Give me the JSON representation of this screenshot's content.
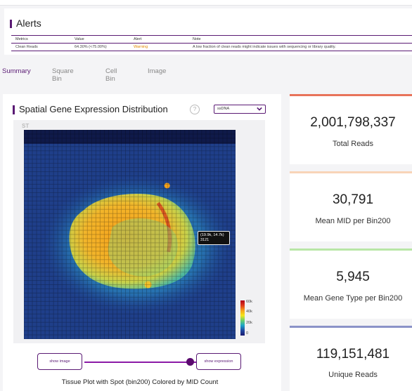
{
  "alerts": {
    "title": "Alerts",
    "columns": [
      "Metrics",
      "Value",
      "Alert",
      "Note"
    ],
    "rows": [
      {
        "metric": "Clean Reads",
        "value": "64.30% (<75.00%)",
        "alert": "Warning",
        "note": "A low fraction of clean reads might indicate issues with sequencing or library quality."
      }
    ]
  },
  "tabs": [
    "Summary",
    "Square Bin",
    "Cell Bin",
    "Image"
  ],
  "active_tab": "Summary",
  "viz": {
    "title": "Spatial Gene Expression Distribution",
    "info_icon": "?",
    "select_value": "ssDNA",
    "plot_label": "ST",
    "tooltip_coords": "(19.9k, 14.7k)",
    "tooltip_value": "3121",
    "colorbar_ticks": [
      "60k",
      "40k",
      "20k",
      "0"
    ],
    "show_image_label": "show image",
    "show_expression_label": "show expression",
    "caption": "Tissue Plot with Spot (bin200) Colored by MID Count"
  },
  "kpis": [
    {
      "value": "2,001,798,337",
      "label": "Total Reads",
      "color": "#e8735a"
    },
    {
      "value": "30,791",
      "label": "Mean MID per Bin200",
      "color": "#f8d4b8"
    },
    {
      "value": "5,945",
      "label": "Mean Gene Type per Bin200",
      "color": "#b8e6a6"
    },
    {
      "value": "119,151,481",
      "label": "Unique Reads",
      "color": "#8b93c8"
    }
  ],
  "colors": {
    "accent": "#5a1a74",
    "warning": "#e08a00"
  }
}
